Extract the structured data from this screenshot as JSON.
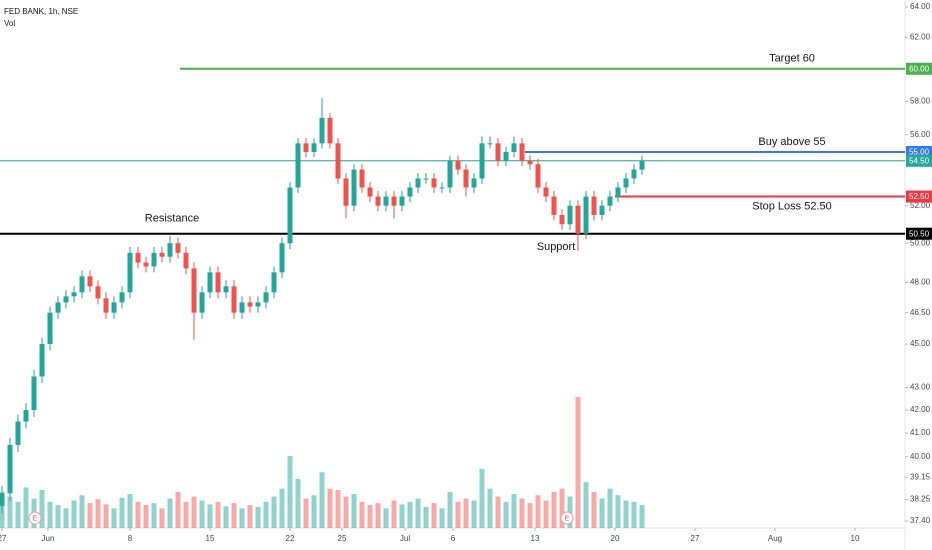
{
  "chart_data": {
    "type": "candlestick",
    "title": "FED BANK, 1h, NSE",
    "volume_label": "Vol",
    "log_scale": true,
    "grid": false,
    "up_color": "#26a69a",
    "down_color": "#ef5350",
    "xlim": [
      -0.25,
      112.875
    ],
    "ylim": [
      37.13,
      64.47
    ],
    "xticks": [
      {
        "value": 0,
        "label": "27"
      },
      {
        "value": 5.75,
        "label": "Jun"
      },
      {
        "value": 16,
        "label": "8"
      },
      {
        "value": 26,
        "label": "15"
      },
      {
        "value": 36,
        "label": "22"
      },
      {
        "value": 42.5,
        "label": "25"
      },
      {
        "value": 50.375,
        "label": "Jul"
      },
      {
        "value": 56.375,
        "label": "6"
      },
      {
        "value": 66.625,
        "label": "13"
      },
      {
        "value": 76.625,
        "label": "20"
      },
      {
        "value": 86.625,
        "label": "27"
      },
      {
        "value": 96.625,
        "label": "Aug"
      },
      {
        "value": 106.625,
        "label": "10"
      }
    ],
    "yticks": [
      {
        "value": 64,
        "label": "64.00"
      },
      {
        "value": 62,
        "label": "62.00"
      },
      {
        "value": 58,
        "label": "58.00"
      },
      {
        "value": 56,
        "label": "56.00"
      },
      {
        "value": 52,
        "label": "52.00"
      },
      {
        "value": 50,
        "label": "50.00"
      },
      {
        "value": 48,
        "label": "48.00"
      },
      {
        "value": 46.5,
        "label": "46.50"
      },
      {
        "value": 45,
        "label": "45.00"
      },
      {
        "value": 43,
        "label": "43.00"
      },
      {
        "value": 42,
        "label": "42.00"
      },
      {
        "value": 41,
        "label": "41.00"
      },
      {
        "value": 40,
        "label": "40.00"
      },
      {
        "value": 39.15,
        "label": "39.15"
      },
      {
        "value": 38.25,
        "label": "38.25"
      },
      {
        "value": 37.4,
        "label": "37.40"
      }
    ],
    "ohlc": [
      [
        38,
        38.8,
        37.7,
        38.5
      ],
      [
        38.5,
        40.8,
        38.2,
        40.5
      ],
      [
        40.5,
        41.8,
        40.2,
        41.5
      ],
      [
        41.5,
        42.3,
        41.2,
        42
      ],
      [
        42,
        43.8,
        41.7,
        43.5
      ],
      [
        43.5,
        45.3,
        43.2,
        45
      ],
      [
        45,
        46.8,
        44.7,
        46.5
      ],
      [
        46.5,
        47.3,
        46.2,
        47
      ],
      [
        47,
        47.6,
        46.7,
        47.3
      ],
      [
        47.3,
        47.8,
        47,
        47.5
      ],
      [
        47.5,
        48.6,
        47.2,
        48.3
      ],
      [
        48.3,
        48.6,
        47.5,
        47.8
      ],
      [
        47.8,
        48.1,
        46.9,
        47.2
      ],
      [
        47.2,
        47.5,
        46.2,
        46.5
      ],
      [
        46.5,
        47.3,
        46.2,
        47
      ],
      [
        47,
        47.8,
        46.7,
        47.5
      ],
      [
        47.5,
        49.8,
        47.2,
        49.5
      ],
      [
        49.5,
        49.8,
        48.7,
        49
      ],
      [
        49,
        49.3,
        48.5,
        48.8
      ],
      [
        48.8,
        49.8,
        48.5,
        49.5
      ],
      [
        49.5,
        49.8,
        49,
        49.3
      ],
      [
        49.3,
        50.4,
        49,
        50
      ],
      [
        50,
        50.3,
        49.2,
        49.5
      ],
      [
        49.5,
        49.8,
        48.4,
        48.7
      ],
      [
        48.7,
        49,
        45.2,
        46.5
      ],
      [
        46.5,
        47.8,
        46.2,
        47.5
      ],
      [
        47.5,
        48.8,
        47.2,
        48.5
      ],
      [
        48.5,
        48.8,
        47.2,
        47.5
      ],
      [
        47.5,
        48.1,
        47.2,
        47.8
      ],
      [
        47.8,
        48.1,
        46.2,
        46.5
      ],
      [
        46.5,
        47.3,
        46.2,
        47
      ],
      [
        47,
        47.3,
        46.5,
        46.8
      ],
      [
        46.8,
        47.3,
        46.5,
        47
      ],
      [
        47,
        47.8,
        46.7,
        47.5
      ],
      [
        47.5,
        48.8,
        47.2,
        48.5
      ],
      [
        48.5,
        50.3,
        48.2,
        50
      ],
      [
        50,
        53.3,
        49.7,
        53
      ],
      [
        53,
        55.8,
        52.7,
        55.5
      ],
      [
        55.5,
        55.8,
        54.7,
        55
      ],
      [
        55,
        55.8,
        54.7,
        55.5
      ],
      [
        55.5,
        58.2,
        55.2,
        57
      ],
      [
        57,
        57.3,
        55.2,
        55.5
      ],
      [
        55.5,
        55.8,
        53.2,
        53.5
      ],
      [
        53.5,
        53.8,
        51.3,
        52
      ],
      [
        52,
        54.3,
        51.7,
        54
      ],
      [
        54,
        54.3,
        52.7,
        53
      ],
      [
        53,
        53.3,
        52.2,
        52.5
      ],
      [
        52.5,
        52.8,
        51.7,
        52
      ],
      [
        52,
        52.8,
        51.7,
        52.5
      ],
      [
        52.5,
        52.8,
        51.3,
        52
      ],
      [
        52,
        52.8,
        51.7,
        52.5
      ],
      [
        52.5,
        53.3,
        52.2,
        53
      ],
      [
        53,
        53.8,
        52.7,
        53.5
      ],
      [
        53.5,
        53.8,
        53.2,
        53.5
      ],
      [
        53.5,
        53.8,
        52.7,
        53
      ],
      [
        53,
        53.3,
        52.7,
        53
      ],
      [
        53,
        54.8,
        52.7,
        54.5
      ],
      [
        54.5,
        54.8,
        53.7,
        54
      ],
      [
        54,
        54.3,
        52.5,
        53
      ],
      [
        53,
        53.8,
        52.7,
        53.5
      ],
      [
        53.5,
        55.9,
        53.2,
        55.5
      ],
      [
        55.5,
        55.9,
        55.2,
        55.5
      ],
      [
        55.5,
        55.8,
        54.2,
        54.5
      ],
      [
        54.5,
        55.3,
        54.2,
        55
      ],
      [
        55,
        55.9,
        54.7,
        55.5
      ],
      [
        55.5,
        55.8,
        54.2,
        54.5
      ],
      [
        54.5,
        54.8,
        54,
        54.3
      ],
      [
        54.3,
        54.6,
        52.7,
        53
      ],
      [
        53,
        53.3,
        52.2,
        52.5
      ],
      [
        52.5,
        52.8,
        51.2,
        51.5
      ],
      [
        51.5,
        51.8,
        50.7,
        51
      ],
      [
        51,
        52.3,
        50.7,
        52
      ],
      [
        52,
        52.3,
        49.6,
        50.5
      ],
      [
        50.5,
        52.8,
        50.2,
        52.5
      ],
      [
        52.5,
        52.8,
        51.2,
        51.5
      ],
      [
        51.5,
        52.3,
        51.2,
        52
      ],
      [
        52,
        52.8,
        51.7,
        52.5
      ],
      [
        52.5,
        53.3,
        52.2,
        53
      ],
      [
        53,
        53.8,
        52.7,
        53.5
      ],
      [
        53.5,
        54.3,
        53.2,
        54
      ],
      [
        54,
        54.8,
        53.7,
        54.5
      ]
    ],
    "volume": [
      55,
      48,
      40,
      62,
      45,
      58,
      40,
      35,
      30,
      42,
      50,
      38,
      44,
      36,
      30,
      46,
      52,
      40,
      35,
      38,
      30,
      45,
      55,
      40,
      48,
      42,
      36,
      40,
      33,
      38,
      30,
      35,
      32,
      40,
      48,
      60,
      110,
      75,
      45,
      50,
      85,
      60,
      58,
      48,
      52,
      40,
      35,
      38,
      30,
      42,
      36,
      40,
      45,
      32,
      38,
      30,
      55,
      40,
      45,
      42,
      90,
      60,
      48,
      40,
      52,
      45,
      38,
      50,
      42,
      55,
      60,
      48,
      200,
      70,
      55,
      45,
      60,
      50,
      42,
      40,
      35
    ],
    "levels": [
      {
        "value": 60,
        "label": "60.00",
        "color": "#4caf50",
        "start": 22.25,
        "note": "Target 60",
        "note_side": "above"
      },
      {
        "value": 55,
        "label": "55.00",
        "color": "#3179f5",
        "start": 65.375,
        "note": "Buy above 55",
        "note_side": "above"
      },
      {
        "value": 52.5,
        "label": "52.50",
        "color": "#f23645",
        "start": 76.625,
        "note": "Stop Loss 52.50",
        "note_side": "below"
      },
      {
        "value": 50.5,
        "label": "50.50",
        "color": "#000000",
        "start": -0.25
      },
      {
        "value": 54.5,
        "label": "54.50",
        "color": "#26a69a",
        "start": -0.25
      }
    ],
    "annotations": [
      {
        "text": "Resistance",
        "x": 21.25,
        "y": 51.3
      },
      {
        "text": "Support",
        "x": 69.25,
        "y": 49.8
      }
    ],
    "events": [
      {
        "label": "E",
        "x": 4.125
      },
      {
        "label": "E",
        "x": 70.625
      }
    ]
  }
}
